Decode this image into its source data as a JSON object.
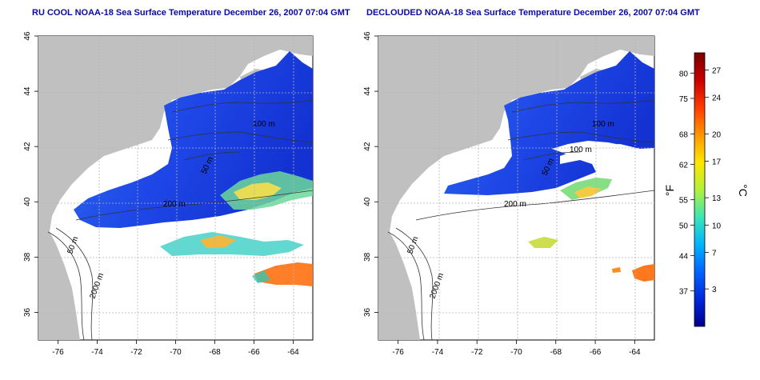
{
  "titles": {
    "left": "RU COOL NOAA-18 Sea Surface Temperature December 26, 2007 07:04 GMT",
    "right": "DECLOUDED NOAA-18 Sea Surface Temperature December 26, 2007 07:04 GMT"
  },
  "axes": {
    "lon_ticks": [
      "-76",
      "-74",
      "-72",
      "-70",
      "-68",
      "-66",
      "-64"
    ],
    "lat_ticks": [
      "46",
      "44",
      "42",
      "40",
      "38",
      "36"
    ]
  },
  "contours": {
    "left": [
      "100 m",
      "50 m",
      "200 m",
      "50 m",
      "2000 m"
    ],
    "right": [
      "100 m",
      "100 m",
      "50 m",
      "200 m",
      "50 m",
      "2000 m"
    ]
  },
  "colorbar": {
    "fahrenheit_unit": "°F",
    "celsius_unit": "°C",
    "fahrenheit_ticks": [
      "80",
      "75",
      "68",
      "62",
      "55",
      "50",
      "44",
      "37"
    ],
    "celsius_ticks": [
      "27",
      "24",
      "20",
      "17",
      "13",
      "10",
      "7",
      "3"
    ],
    "colors": [
      "#7a0000",
      "#c80000",
      "#ff3c00",
      "#ff9600",
      "#ffe600",
      "#b4f03c",
      "#3ce6b4",
      "#00b4ff",
      "#0064ff",
      "#0028dc",
      "#00008c"
    ]
  },
  "colors": {
    "land": "#c0c0c0",
    "cold": "#1e46e6",
    "warm": "#ff8c1e",
    "title": "#0a0aa0"
  }
}
